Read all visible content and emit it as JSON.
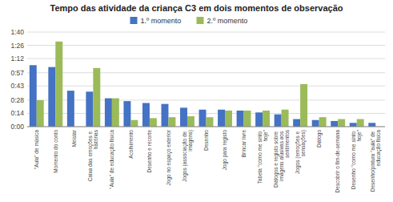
{
  "chart_data": {
    "type": "bar",
    "title": "Tempo das atividade da criança C3 em dois momentos de observação",
    "categories": [
      "\"Aula\" de música",
      "Momento do conto",
      "Meistar",
      "Caixa das emoções e histórias",
      "\"Aula\" de educação física",
      "Acolhimento",
      "Desenho e recorte",
      "Jogo no espaço exterior",
      "Jogos (associação de imagens)",
      "Desenho",
      "Jogo para registo",
      "Brincar livre",
      "Tabela \"como me sinto hoje\"",
      "Diálogos e registo sobre imagens alusivas aos sentimentos",
      "Jogos (emoções e sensações)",
      "Diálogo",
      "Descobrir o fim-de-semana",
      "Desenho \"como me sinto hoje\"",
      "Desenho/pintura \"aula\" de educação física"
    ],
    "series": [
      {
        "name": "1.º momento",
        "color": "#4472C4",
        "values": [
          65,
          63,
          38,
          37,
          30,
          27,
          25,
          24,
          20,
          18,
          18,
          17,
          15,
          13,
          8,
          7,
          6,
          4,
          4
        ]
      },
      {
        "name": "2.º momento",
        "color": "#9BBB59",
        "values": [
          28,
          90,
          0,
          62,
          30,
          7,
          9,
          10,
          11,
          10,
          17,
          17,
          17,
          18,
          45,
          10,
          8,
          8,
          0
        ]
      }
    ],
    "ylim": [
      0,
      100
    ],
    "yticks": [
      {
        "value": 0,
        "label": "0:00"
      },
      {
        "value": 14,
        "label": "0:14"
      },
      {
        "value": 28,
        "label": "0:28"
      },
      {
        "value": 43,
        "label": "0:43"
      },
      {
        "value": 57,
        "label": "0:57"
      },
      {
        "value": 72,
        "label": "1:12"
      },
      {
        "value": 86,
        "label": "1:26"
      },
      {
        "value": 100,
        "label": "1:40"
      }
    ],
    "grid": true,
    "legend": "top"
  }
}
